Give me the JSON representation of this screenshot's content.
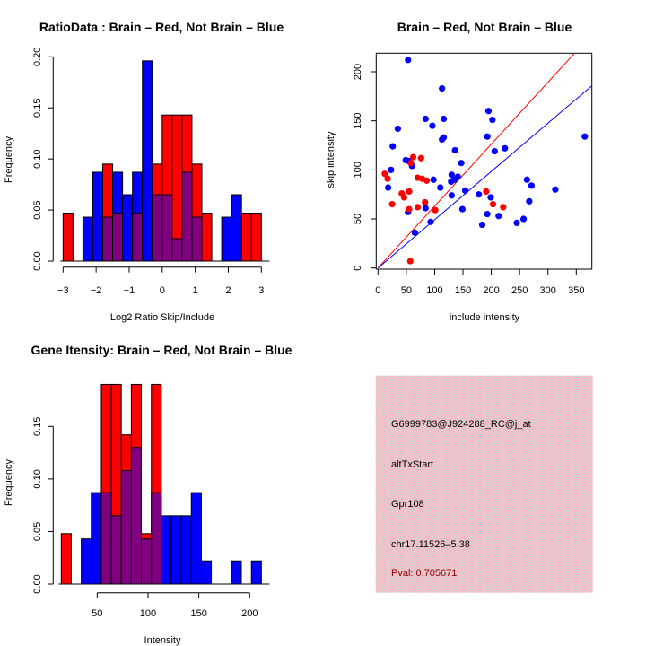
{
  "colors": {
    "brain": "#ff0000",
    "not_brain": "#0000ff",
    "overlap": "#800080",
    "panel_bg": "#e9c6cc",
    "pval_text": "#8b0000"
  },
  "chart_data": [
    {
      "id": "ratio-histogram",
      "type": "bar",
      "title": "RatioData : Brain – Red, Not Brain – Blue",
      "xlabel": "Log2 Ratio Skip/Include",
      "ylabel": "Frequency",
      "xlim": [
        -3,
        3
      ],
      "ylim": [
        0,
        0.2
      ],
      "xticks": [
        "-3",
        "-2",
        "-1",
        "0",
        "1",
        "2",
        "3"
      ],
      "xtick_values": [
        -3,
        -2,
        -1,
        0,
        1,
        2,
        3
      ],
      "yticks": [
        "0.00",
        "0.05",
        "0.10",
        "0.15",
        "0.20"
      ],
      "ytick_values": [
        0,
        0.05,
        0.1,
        0.15,
        0.2
      ],
      "bin_edges": [
        -3.0,
        -2.7,
        -2.4,
        -2.1,
        -1.8,
        -1.5,
        -1.2,
        -0.9,
        -0.6,
        -0.3,
        0.0,
        0.3,
        0.6,
        0.9,
        1.2,
        1.5,
        1.8,
        2.1,
        2.4,
        2.7,
        3.0
      ],
      "series": [
        {
          "name": "Brain",
          "color": "red",
          "values": [
            0.047,
            0,
            0,
            0,
            0.095,
            0.047,
            0,
            0.047,
            0,
            0.095,
            0.143,
            0.143,
            0.143,
            0.095,
            0.047,
            0,
            0,
            0,
            0.047,
            0.047
          ]
        },
        {
          "name": "Not Brain",
          "color": "blue",
          "values": [
            0,
            0,
            0.043,
            0.087,
            0.043,
            0.087,
            0.065,
            0.087,
            0.196,
            0.065,
            0.065,
            0.022,
            0.087,
            0.043,
            0,
            0,
            0.043,
            0.065,
            0,
            0
          ]
        }
      ],
      "grid": false
    },
    {
      "id": "intensity-scatter",
      "type": "scatter",
      "title": "Brain – Red, Not Brain – Blue",
      "xlabel": "include intensity",
      "ylabel": "skip intensity",
      "xlim": [
        0,
        370
      ],
      "ylim": [
        0,
        220
      ],
      "xticks": [
        "0",
        "50",
        "100",
        "150",
        "200",
        "250",
        "300",
        "350"
      ],
      "xtick_values": [
        0,
        50,
        100,
        150,
        200,
        250,
        300,
        350
      ],
      "yticks": [
        "0",
        "50",
        "100",
        "150",
        "200"
      ],
      "ytick_values": [
        0,
        50,
        100,
        150,
        200
      ],
      "series": [
        {
          "name": "Not Brain",
          "color": "blue",
          "points": [
            [
              53,
              212
            ],
            [
              113,
              183
            ],
            [
              84,
              152
            ],
            [
              116,
              152
            ],
            [
              35,
              142
            ],
            [
              96,
              145
            ],
            [
              113,
              131
            ],
            [
              116,
              133
            ],
            [
              26,
              124
            ],
            [
              136,
              120
            ],
            [
              195,
              160
            ],
            [
              202,
              151
            ],
            [
              193,
              134
            ],
            [
              365,
              134
            ],
            [
              206,
              119
            ],
            [
              224,
              122
            ],
            [
              147,
              107
            ],
            [
              49,
              110
            ],
            [
              54,
              109
            ],
            [
              60,
              104
            ],
            [
              23,
              100
            ],
            [
              18,
              82
            ],
            [
              98,
              90
            ],
            [
              130,
              95
            ],
            [
              129,
              88
            ],
            [
              135,
              90
            ],
            [
              141,
              93
            ],
            [
              110,
              82
            ],
            [
              154,
              79
            ],
            [
              178,
              75
            ],
            [
              263,
              90
            ],
            [
              271,
              84
            ],
            [
              313,
              80
            ],
            [
              199,
              72
            ],
            [
              267,
              68
            ],
            [
              130,
              74
            ],
            [
              84,
              61
            ],
            [
              53,
              57
            ],
            [
              149,
              60
            ],
            [
              193,
              55
            ],
            [
              213,
              53
            ],
            [
              257,
              50
            ],
            [
              245,
              46
            ],
            [
              184,
              44
            ],
            [
              93,
              47
            ],
            [
              65,
              36
            ]
          ]
        },
        {
          "name": "Brain",
          "color": "red",
          "points": [
            [
              62,
              113
            ],
            [
              76,
              112
            ],
            [
              58,
              107
            ],
            [
              12,
              96
            ],
            [
              17,
              91
            ],
            [
              70,
              92
            ],
            [
              78,
              91
            ],
            [
              86,
              89
            ],
            [
              42,
              76
            ],
            [
              46,
              72
            ],
            [
              55,
              78
            ],
            [
              25,
              65
            ],
            [
              83,
              67
            ],
            [
              70,
              62
            ],
            [
              55,
              60
            ],
            [
              101,
              59
            ],
            [
              191,
              78
            ],
            [
              203,
              65
            ],
            [
              221,
              62
            ],
            [
              57,
              7
            ]
          ]
        }
      ],
      "lines": [
        {
          "name": "Brain fit",
          "color": "red",
          "intercept": 0,
          "slope": 0.631
        },
        {
          "name": "Not Brain fit",
          "color": "blue",
          "intercept": 0,
          "slope": 0.492
        }
      ],
      "grid": false
    },
    {
      "id": "gene-intensity-histogram",
      "type": "bar",
      "title": "Gene Itensity: Brain – Red, Not Brain – Blue",
      "xlabel": "Intensity",
      "ylabel": "Frequency",
      "xlim": [
        14.7,
        211.5
      ],
      "ylim": [
        0,
        0.15
      ],
      "xticks": [
        "50",
        "100",
        "150",
        "200"
      ],
      "xtick_values": [
        50,
        100,
        150,
        200
      ],
      "yticks": [
        "0.00",
        "0.05",
        "0.10",
        "0.15"
      ],
      "ytick_values": [
        0,
        0.05,
        0.1,
        0.15
      ],
      "bin_edges": [
        14.7,
        24.5,
        34.4,
        44.2,
        54.1,
        63.9,
        73.7,
        83.6,
        93.4,
        103.3,
        113.1,
        122.9,
        132.8,
        142.6,
        152.5,
        162.3,
        172.1,
        182.0,
        191.8,
        201.7,
        211.5
      ],
      "series": [
        {
          "name": "Brain",
          "color": "red",
          "values": [
            0.048,
            0,
            0,
            0,
            0.19,
            0.19,
            0.142,
            0.19,
            0.048,
            0.19,
            0,
            0,
            0,
            0,
            0,
            0,
            0,
            0,
            0,
            0
          ]
        },
        {
          "name": "Not Brain",
          "color": "blue",
          "values": [
            0,
            0,
            0.043,
            0.087,
            0.087,
            0.065,
            0.108,
            0.13,
            0.043,
            0.087,
            0.065,
            0.065,
            0.065,
            0.087,
            0.022,
            0,
            0,
            0.022,
            0,
            0.022
          ]
        }
      ],
      "grid": false
    }
  ],
  "info_panel": {
    "probe_id": "G6999783@J924288_RC@j_at",
    "event_type": "altTxStart",
    "gene": "Gpr108",
    "location": "chr17.11526–5.38",
    "pval": "Pval: 0.705671"
  }
}
